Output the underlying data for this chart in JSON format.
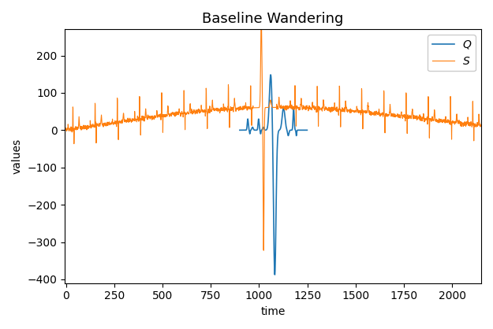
{
  "title": "Baseline Wandering",
  "xlabel": "time",
  "ylabel": "values",
  "ylim": [
    -410,
    270
  ],
  "xlim": [
    -5,
    2150
  ],
  "legend_Q": "Q",
  "legend_S": "S",
  "color_Q": "#1f77b4",
  "color_S": "#ff7f0e",
  "seed": 42,
  "n_stream": 2150,
  "heartbeat_period": 115,
  "q_start": 900,
  "q_end": 1250,
  "noise_level": 3
}
